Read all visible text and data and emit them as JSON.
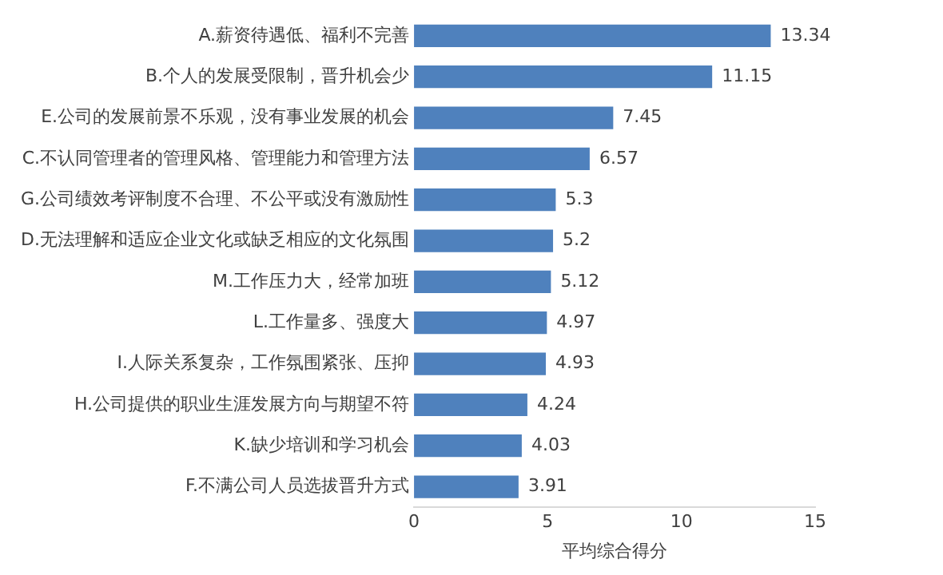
{
  "chart_data": {
    "type": "bar",
    "orientation": "horizontal",
    "xlabel": "平均综合得分",
    "categories": [
      "A.薪资待遇低、福利不完善",
      "B.个人的发展受限制，晋升机会少",
      "E.公司的发展前景不乐观，没有事业发展的机会",
      "C.不认同管理者的管理风格、管理能力和管理方法",
      "G.公司绩效考评制度不合理、不公平或没有激励性",
      "D.无法理解和适应企业文化或缺乏相应的文化氛围",
      "M.工作压力大，经常加班",
      "L.工作量多、强度大",
      "I.人际关系复杂，工作氛围紧张、压抑",
      "H.公司提供的职业生涯发展方向与期望不符",
      "K.缺少培训和学习机会",
      "F.不满公司人员选拔晋升方式"
    ],
    "values": [
      13.34,
      11.15,
      7.45,
      6.57,
      5.3,
      5.2,
      5.12,
      4.97,
      4.93,
      4.24,
      4.03,
      3.91
    ],
    "color": "#4f81bd",
    "xlim": [
      0,
      15
    ],
    "xticks": [
      0,
      5,
      10,
      15
    ],
    "grid": false,
    "data_labels": true
  }
}
